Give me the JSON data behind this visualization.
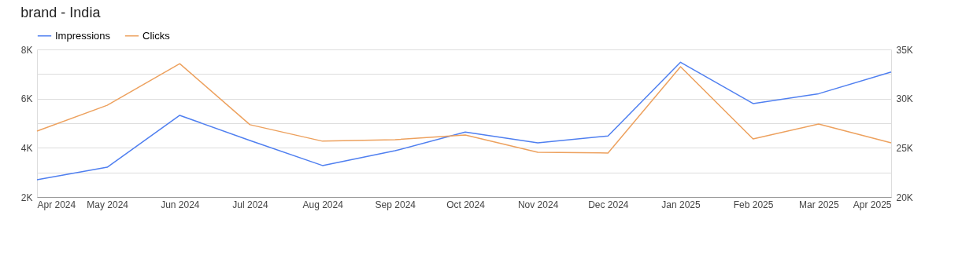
{
  "chart_data": {
    "type": "line",
    "title": "brand - India",
    "x": [
      "2024-04",
      "2024-05",
      "2024-06",
      "2024-07",
      "2024-08",
      "2024-09",
      "2024-10",
      "2024-11",
      "2024-12",
      "2025-01",
      "2025-02",
      "2025-03",
      "2025-04"
    ],
    "xlim": [
      "2024-04",
      "2025-04"
    ],
    "xticks": [
      {
        "value": "2024-04",
        "label": "Apr 2024"
      },
      {
        "value": "2024-05",
        "label": "May 2024"
      },
      {
        "value": "2024-06",
        "label": "Jun 2024"
      },
      {
        "value": "2024-07",
        "label": "Jul 2024"
      },
      {
        "value": "2024-08",
        "label": "Aug 2024"
      },
      {
        "value": "2024-09",
        "label": "Sep 2024"
      },
      {
        "value": "2024-10",
        "label": "Oct 2024"
      },
      {
        "value": "2024-11",
        "label": "Nov 2024"
      },
      {
        "value": "2024-12",
        "label": "Dec 2024"
      },
      {
        "value": "2025-01",
        "label": "Jan 2025"
      },
      {
        "value": "2025-02",
        "label": "Feb 2025"
      },
      {
        "value": "2025-03",
        "label": "Mar 2025"
      },
      {
        "value": "2025-04",
        "label": "Apr 2025"
      }
    ],
    "series": [
      {
        "name": "Impressions",
        "color": "#4f7ff0",
        "axis": "y2",
        "values": [
          21760,
          23030,
          28300,
          25750,
          23200,
          24700,
          26600,
          25500,
          26200,
          33700,
          29500,
          30500,
          32700
        ]
      },
      {
        "name": "Clicks",
        "color": "#eda15e",
        "values": [
          4680,
          5730,
          7420,
          4940,
          4270,
          4330,
          4520,
          3820,
          3790,
          7300,
          4360,
          4970,
          4200
        ]
      }
    ],
    "ylim": [
      2000,
      8000
    ],
    "yticks": [
      {
        "value": 2000,
        "label": "2K"
      },
      {
        "value": 3000,
        "label": null
      },
      {
        "value": 4000,
        "label": "4K"
      },
      {
        "value": 5000,
        "label": null
      },
      {
        "value": 6000,
        "label": "6K"
      },
      {
        "value": 7000,
        "label": null
      },
      {
        "value": 8000,
        "label": "8K"
      }
    ],
    "y2lim": [
      20000,
      35000
    ],
    "y2ticks": [
      {
        "value": 20000,
        "label": "20K"
      },
      {
        "value": 22500,
        "label": null
      },
      {
        "value": 25000,
        "label": "25K"
      },
      {
        "value": 27500,
        "label": null
      },
      {
        "value": 30000,
        "label": "30K"
      },
      {
        "value": 32500,
        "label": null
      },
      {
        "value": 35000,
        "label": "35K"
      }
    ],
    "grid": "y",
    "legend": "top left",
    "marker": "none",
    "line_style": "solid"
  }
}
